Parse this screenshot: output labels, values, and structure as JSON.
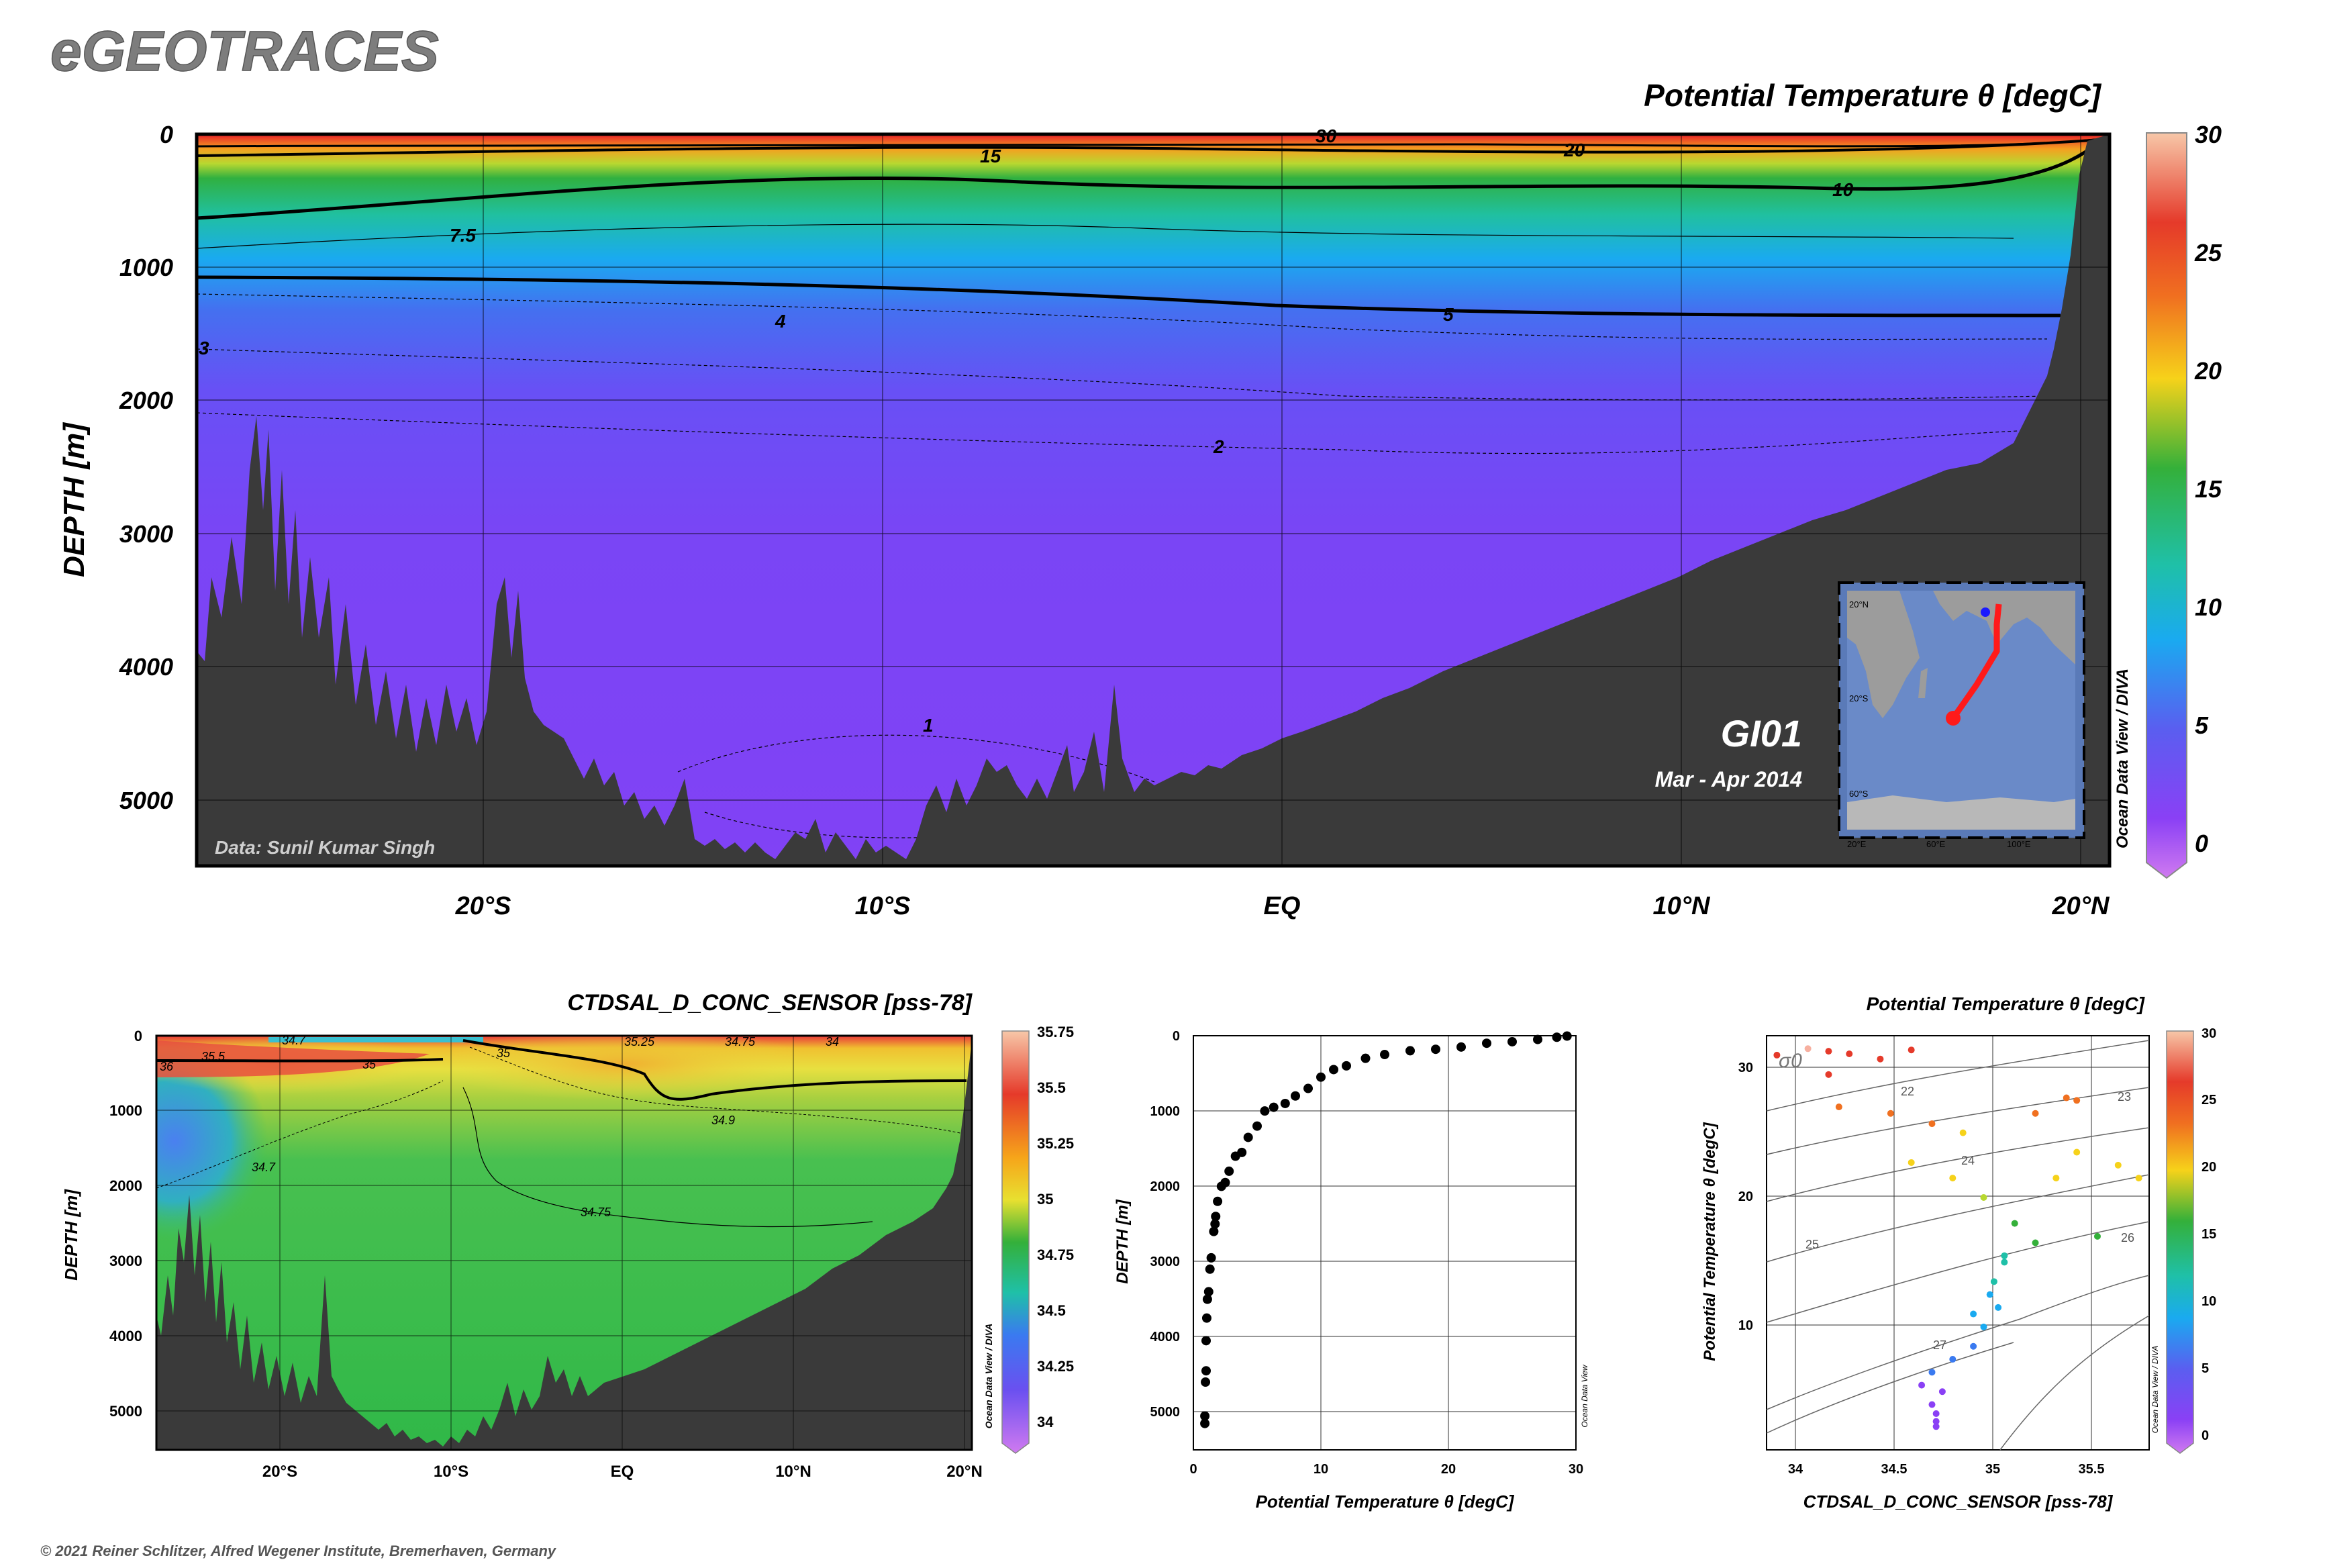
{
  "header": {
    "app_title": "eGEOTRACES"
  },
  "footer": {
    "copyright": "© 2021 Reiner Schlitzer, Alfred Wegener Institute, Bremerhaven, Germany"
  },
  "odv_tag": "Ocean Data View / DIVA",
  "odv_tag_short": "Ocean Data View",
  "main_section": {
    "title": "Potential Temperature θ [degC]",
    "ylabel": "DEPTH [m]",
    "credit": "Data: Sunil Kumar Singh",
    "cruise": "GI01",
    "period": "Mar - Apr 2014",
    "colorbar_ticks": [
      "30",
      "25",
      "20",
      "15",
      "10",
      "5",
      "0"
    ]
  },
  "salinity_section": {
    "title": "CTDSAL_D_CONC_SENSOR [pss-78]",
    "ylabel": "DEPTH [m]",
    "colorbar_ticks": [
      "35.75",
      "35.5",
      "35.25",
      "35",
      "34.75",
      "34.5",
      "34.25",
      "34"
    ]
  },
  "profile": {
    "xlabel": "Potential Temperature θ [degC]",
    "ylabel": "DEPTH [m]"
  },
  "ts_plot": {
    "title": "Potential Temperature θ [degC]",
    "xlabel": "CTDSAL_D_CONC_SENSOR [pss-78]",
    "ylabel": "Potential Temperature θ [degC]",
    "sigma_label": "σ0",
    "colorbar_ticks": [
      "30",
      "25",
      "20",
      "15",
      "10",
      "5",
      "0"
    ]
  },
  "inset_map": {
    "lat_labels": [
      "20°N",
      "20°S",
      "60°S"
    ],
    "lon_labels": [
      "20°E",
      "60°E",
      "100°E"
    ]
  },
  "chart_data": [
    {
      "type": "heatmap",
      "name": "main-section",
      "title": "Potential Temperature θ [degC]",
      "ylabel": "DEPTH [m]",
      "x_tick_labels": [
        "20°S",
        "10°S",
        "EQ",
        "10°N",
        "20°N"
      ],
      "y_tick_labels": [
        "0",
        "1000",
        "2000",
        "3000",
        "4000",
        "5000"
      ],
      "ylim": [
        5500,
        0
      ],
      "contours": [
        {
          "label": "30",
          "depth_m": 20
        },
        {
          "label": "20",
          "depth_m": 120
        },
        {
          "label": "15",
          "depth_m": 170
        },
        {
          "label": "10",
          "depth_m": 450
        },
        {
          "label": "7.5",
          "depth_m": 750
        },
        {
          "label": "5",
          "depth_m": 1300
        },
        {
          "label": "4",
          "depth_m": 1400
        },
        {
          "label": "3",
          "depth_m": 1600
        },
        {
          "label": "2",
          "depth_m": 2400
        },
        {
          "label": "1",
          "depth_m": 4500
        }
      ],
      "colorbar": {
        "min": 0,
        "max": 30
      }
    },
    {
      "type": "heatmap",
      "name": "salinity-section",
      "title": "CTDSAL_D_CONC_SENSOR [pss-78]",
      "ylabel": "DEPTH [m]",
      "x_tick_labels": [
        "20°S",
        "10°S",
        "EQ",
        "10°N",
        "20°N"
      ],
      "y_tick_labels": [
        "0",
        "1000",
        "2000",
        "3000",
        "4000",
        "5000"
      ],
      "contour_labels": [
        "34.7",
        "35.5",
        "35.25",
        "35",
        "34.75",
        "34",
        "36",
        "35",
        "34.9",
        "34.7",
        "34.75"
      ],
      "colorbar": {
        "min": 34,
        "max": 35.75
      }
    },
    {
      "type": "scatter",
      "name": "temperature-profile",
      "xlabel": "Potential Temperature θ [degC]",
      "ylabel": "DEPTH [m]",
      "x_tick_labels": [
        "0",
        "10",
        "20",
        "30"
      ],
      "y_tick_labels": [
        "0",
        "1000",
        "2000",
        "3000",
        "4000",
        "5000"
      ],
      "xlim": [
        0,
        30
      ],
      "ylim": [
        5500,
        0
      ],
      "points": [
        [
          0.9,
          5150
        ],
        [
          0.9,
          5050
        ],
        [
          0.95,
          4600
        ],
        [
          1.0,
          4450
        ],
        [
          1.0,
          4050
        ],
        [
          1.05,
          3750
        ],
        [
          1.1,
          3500
        ],
        [
          1.2,
          3400
        ],
        [
          1.3,
          3100
        ],
        [
          1.4,
          2950
        ],
        [
          1.6,
          2600
        ],
        [
          1.7,
          2500
        ],
        [
          1.75,
          2400
        ],
        [
          1.9,
          2200
        ],
        [
          2.2,
          2000
        ],
        [
          2.5,
          1950
        ],
        [
          2.8,
          1800
        ],
        [
          3.3,
          1600
        ],
        [
          3.8,
          1550
        ],
        [
          4.3,
          1350
        ],
        [
          5.0,
          1200
        ],
        [
          5.6,
          1000
        ],
        [
          6.3,
          950
        ],
        [
          7.2,
          900
        ],
        [
          8.0,
          800
        ],
        [
          9.0,
          700
        ],
        [
          10.0,
          550
        ],
        [
          11.0,
          450
        ],
        [
          12.0,
          400
        ],
        [
          13.5,
          300
        ],
        [
          15.0,
          250
        ],
        [
          17.0,
          200
        ],
        [
          19.0,
          180
        ],
        [
          21.0,
          150
        ],
        [
          23.0,
          100
        ],
        [
          25.0,
          80
        ],
        [
          27.0,
          50
        ],
        [
          28.5,
          20
        ],
        [
          29.3,
          5
        ]
      ]
    },
    {
      "type": "scatter",
      "name": "ts-diagram",
      "title": "Potential Temperature θ [degC]",
      "xlabel": "CTDSAL_D_CONC_SENSOR [pss-78]",
      "ylabel": "Potential Temperature θ [degC]",
      "x_tick_labels": [
        "34",
        "34.5",
        "35",
        "35.5"
      ],
      "y_tick_labels": [
        "30",
        "20",
        "10"
      ],
      "xlim": [
        33.9,
        35.75
      ],
      "ylim": [
        -1,
        31
      ],
      "isopycnal_labels": [
        "22",
        "23",
        "24",
        "25",
        "26",
        "27"
      ],
      "points": [
        [
          33.95,
          29.5
        ],
        [
          34.1,
          30.0
        ],
        [
          34.2,
          29.8
        ],
        [
          34.3,
          29.6
        ],
        [
          34.45,
          29.2
        ],
        [
          34.6,
          29.9
        ],
        [
          34.2,
          28.0
        ],
        [
          34.25,
          25.5
        ],
        [
          34.5,
          25.0
        ],
        [
          34.7,
          24.2
        ],
        [
          34.85,
          23.5
        ],
        [
          34.6,
          21.2
        ],
        [
          34.8,
          20.0
        ],
        [
          34.95,
          18.5
        ],
        [
          35.1,
          16.5
        ],
        [
          35.2,
          15.0
        ],
        [
          35.3,
          20.0
        ],
        [
          35.4,
          22.0
        ],
        [
          35.6,
          21.0
        ],
        [
          35.7,
          20.0
        ],
        [
          35.4,
          26.0
        ],
        [
          35.35,
          26.2
        ],
        [
          35.2,
          25.0
        ],
        [
          35.05,
          13.5
        ],
        [
          35.0,
          12.0
        ],
        [
          34.98,
          11.0
        ],
        [
          35.02,
          10.0
        ],
        [
          34.95,
          8.5
        ],
        [
          34.9,
          7.0
        ],
        [
          34.8,
          6.0
        ],
        [
          34.7,
          5.0
        ],
        [
          34.65,
          4.0
        ],
        [
          34.75,
          3.5
        ],
        [
          34.7,
          2.5
        ],
        [
          34.72,
          1.8
        ],
        [
          34.72,
          1.2
        ],
        [
          34.72,
          0.8
        ],
        [
          35.5,
          15.5
        ],
        [
          35.05,
          14.0
        ],
        [
          34.9,
          9.5
        ]
      ],
      "colorbar": {
        "min": 0,
        "max": 30
      }
    }
  ],
  "colors": {
    "bathymetry": "#3a3a3a",
    "deep_purple": "#7a45f5"
  }
}
